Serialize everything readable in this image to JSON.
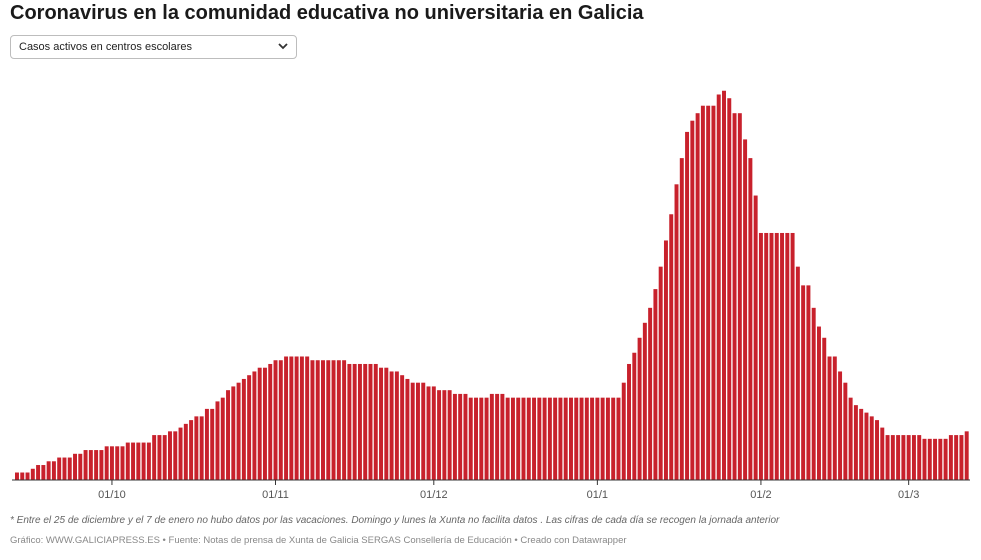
{
  "header": {
    "title": "Coronavirus en la comunidad educativa no universitaria en Galicia"
  },
  "selector": {
    "selected": "Casos activos en centros escolares",
    "caret_icon": "chevron-down-icon"
  },
  "chart_data": {
    "type": "bar",
    "bar_color": "#c8212c",
    "ylim": [
      0,
      105
    ],
    "grid": false,
    "x_tick_labels": [
      {
        "label": "01/10",
        "index": 18
      },
      {
        "label": "01/11",
        "index": 49
      },
      {
        "label": "01/12",
        "index": 79
      },
      {
        "label": "01/1",
        "index": 110
      },
      {
        "label": "01/2",
        "index": 141
      },
      {
        "label": "01/3",
        "index": 169
      }
    ],
    "values": [
      2,
      2,
      2,
      3,
      4,
      4,
      5,
      5,
      6,
      6,
      6,
      7,
      7,
      8,
      8,
      8,
      8,
      9,
      9,
      9,
      9,
      10,
      10,
      10,
      10,
      10,
      12,
      12,
      12,
      13,
      13,
      14,
      15,
      16,
      17,
      17,
      19,
      19,
      21,
      22,
      24,
      25,
      26,
      27,
      28,
      29,
      30,
      30,
      31,
      32,
      32,
      33,
      33,
      33,
      33,
      33,
      32,
      32,
      32,
      32,
      32,
      32,
      32,
      31,
      31,
      31,
      31,
      31,
      31,
      30,
      30,
      29,
      29,
      28,
      27,
      26,
      26,
      26,
      25,
      25,
      24,
      24,
      24,
      23,
      23,
      23,
      22,
      22,
      22,
      22,
      23,
      23,
      23,
      22,
      22,
      22,
      22,
      22,
      22,
      22,
      22,
      22,
      22,
      22,
      22,
      22,
      22,
      22,
      22,
      22,
      22,
      22,
      22,
      22,
      22,
      26,
      31,
      34,
      38,
      42,
      46,
      51,
      57,
      64,
      71,
      79,
      86,
      93,
      96,
      98,
      100,
      100,
      100,
      103,
      104,
      102,
      98,
      98,
      91,
      86,
      76,
      66,
      66,
      66,
      66,
      66,
      66,
      66,
      57,
      52,
      52,
      46,
      41,
      38,
      33,
      33,
      29,
      26,
      22,
      20,
      19,
      18,
      17,
      16,
      14,
      12,
      12,
      12,
      12,
      12,
      12,
      12,
      11,
      11,
      11,
      11,
      11,
      12,
      12,
      12,
      13
    ]
  },
  "footer": {
    "note": "* Entre el 25 de diciembre y el 7 de enero no hubo datos por las vacaciones. Domingo y lunes la Xunta no facilita datos . Las cifras de cada día se recogen la jornada anterior",
    "credit": "Gráfico: WWW.GALICIAPRESS.ES • Fuente: Notas de prensa de Xunta de Galicia SERGAS Consellería de Educación • Creado con Datawrapper"
  }
}
